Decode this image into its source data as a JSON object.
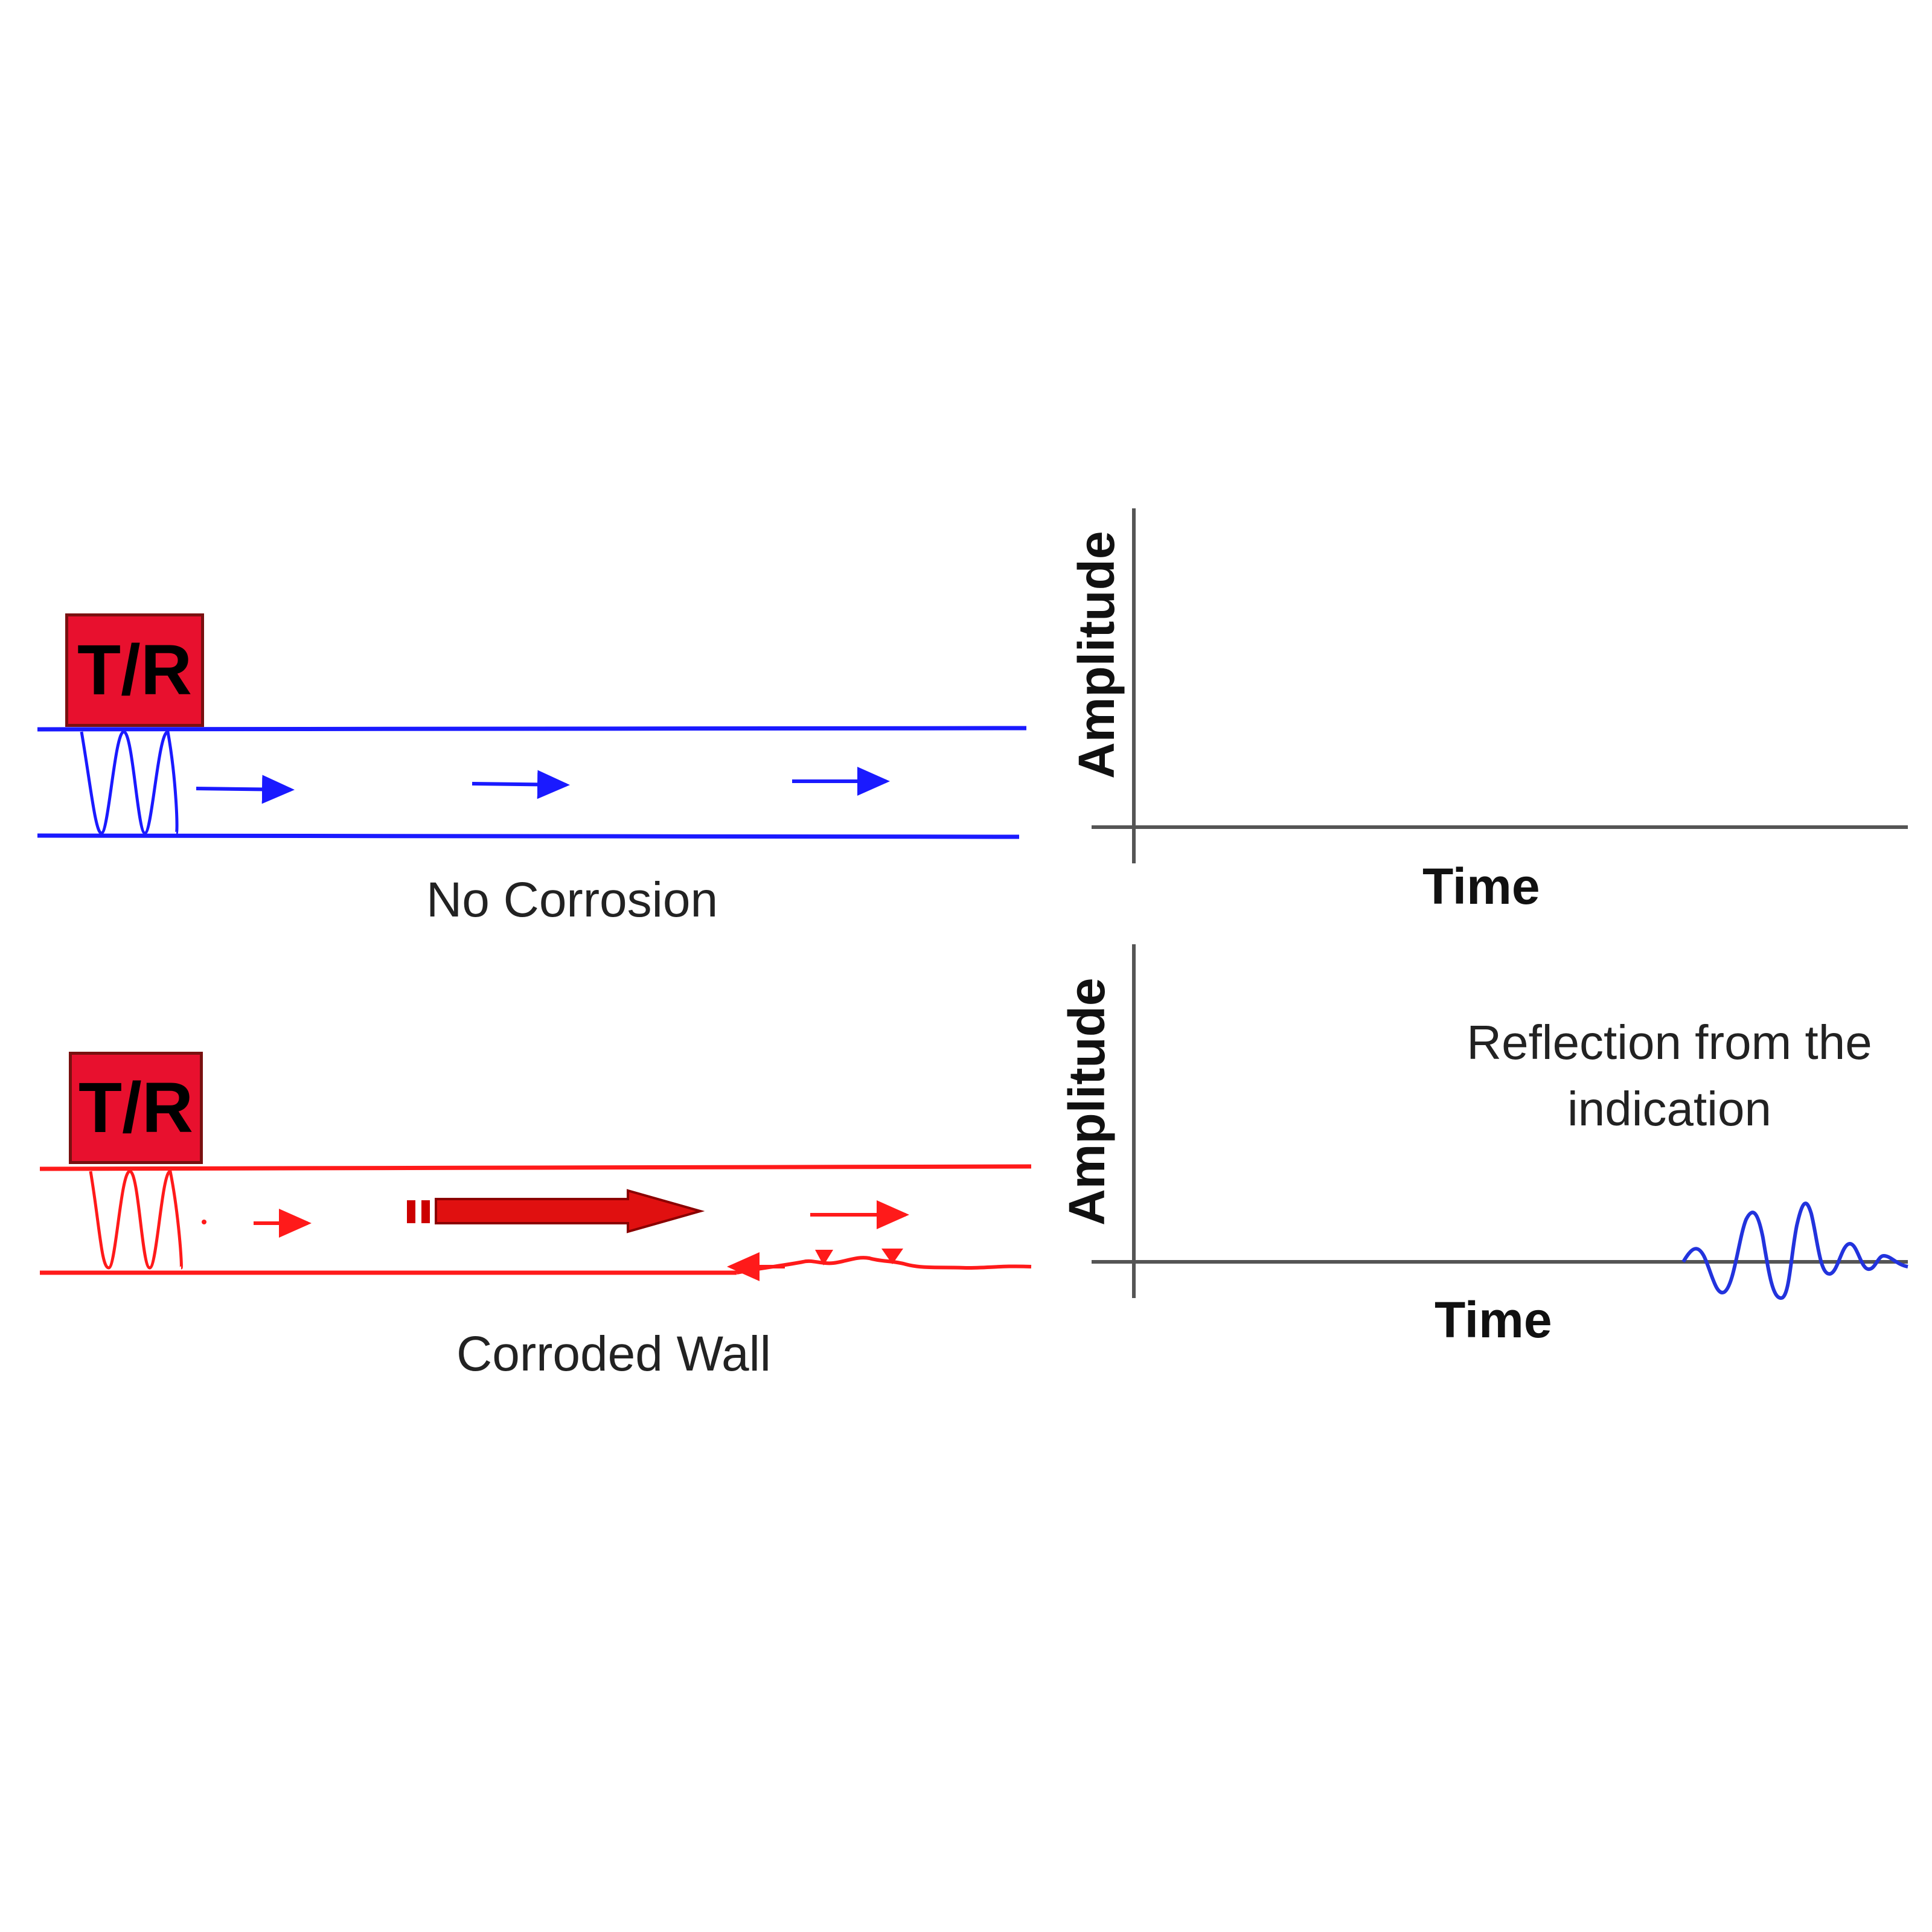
{
  "top_panel": {
    "transducer_label": "T/R",
    "caption": "No Corrosion",
    "pipe_color": "#1a1aff"
  },
  "bottom_panel": {
    "transducer_label": "T/R",
    "caption": "Corroded Wall",
    "pipe_color": "#ff1a1a"
  },
  "top_plot": {
    "ylabel": "Amplitude",
    "xlabel": "Time"
  },
  "bottom_plot": {
    "ylabel": "Amplitude",
    "xlabel": "Time",
    "annotation_line1": "Reflection from the",
    "annotation_line2": "indication",
    "signal_color": "#2233dd"
  },
  "colors": {
    "transducer_fill": "#e8102e",
    "axis": "#555555"
  }
}
